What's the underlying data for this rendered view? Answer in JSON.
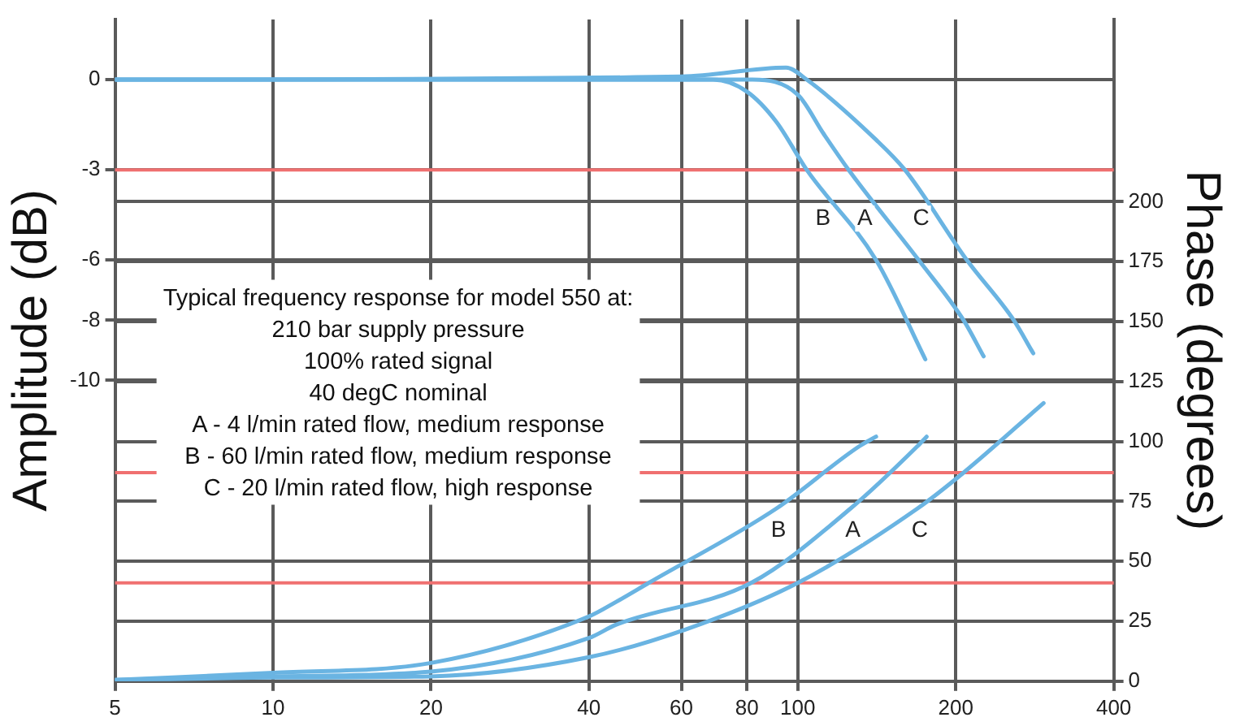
{
  "chart_data": {
    "type": "line",
    "xlabel": null,
    "ylabel": "Amplitude (dB)",
    "y2label": "Phase (degrees)",
    "log": "x",
    "grid": true,
    "legend": false,
    "marker": "none",
    "line_style": "solid",
    "xlim": [
      5,
      400
    ],
    "xticks": [
      5,
      10,
      20,
      40,
      60,
      80,
      100,
      200,
      400
    ],
    "ylim": [
      -20,
      2
    ],
    "yticks": [
      0,
      -3,
      -6,
      -8,
      -10
    ],
    "y2lim": [
      0,
      276
    ],
    "y2ticks": [
      0,
      25,
      50,
      75,
      100,
      125,
      150,
      175,
      200
    ],
    "series": [
      {
        "name": "B",
        "color": "#6ab4e2",
        "x": [
          5,
          60,
          69,
          80,
          91,
          104,
          141,
          175
        ],
        "values": [
          0,
          0,
          0,
          -0.4,
          -1.4,
          -3,
          -6,
          -9.3
        ]
      },
      {
        "name": "A",
        "color": "#6ab4e2",
        "x": [
          5,
          82,
          100,
          112,
          125,
          170,
          207,
          226
        ],
        "values": [
          0,
          0,
          -0.5,
          -1.8,
          -3,
          -6,
          -8,
          -9.2
        ]
      },
      {
        "name": "C",
        "color": "#6ab4e2",
        "x": [
          5,
          60,
          95,
          104,
          141,
          160,
          210,
          258,
          281
        ],
        "values": [
          0,
          0.1,
          0.4,
          0,
          -2,
          -3,
          -6,
          -8,
          -9.1
        ]
      },
      {
        "name": "B",
        "color": "#6ab4e2",
        "axis": "y2",
        "x": [
          5,
          10,
          20,
          40,
          45,
          52,
          91,
          131,
          141
        ],
        "values": [
          0.5,
          3.5,
          7.6,
          27,
          33,
          41,
          72,
          98,
          102
        ]
      },
      {
        "name": "A",
        "color": "#6ab4e2",
        "axis": "y2",
        "x": [
          5,
          10,
          20,
          40,
          45,
          81.5,
          126,
          169,
          176
        ],
        "values": [
          0.5,
          2,
          4,
          18,
          23.5,
          41,
          72,
          98,
          102
        ]
      },
      {
        "name": "C",
        "color": "#6ab4e2",
        "axis": "y2",
        "x": [
          5,
          10,
          20,
          40,
          61,
          100,
          169,
          207,
          294
        ],
        "values": [
          0.3,
          1.5,
          2,
          10,
          21.5,
          41,
          72,
          87,
          116
        ]
      }
    ],
    "ref_lines": [
      {
        "axis": "y",
        "value": -3,
        "label": null,
        "color": "#f07070"
      },
      {
        "axis": "y2",
        "value": 87,
        "label": null,
        "color": "#f07070"
      },
      {
        "axis": "y2",
        "value": 41,
        "label": null,
        "color": "#f07070"
      }
    ],
    "annotations": [
      "Typical frequency response for model 550 at:",
      "210 bar supply pressure",
      "100% rated signal",
      "40 degC nominal",
      "A - 4 l/min rated flow, medium response",
      "B - 60 l/min rated flow, medium response",
      "C - 20 l/min rated flow, high response"
    ]
  }
}
